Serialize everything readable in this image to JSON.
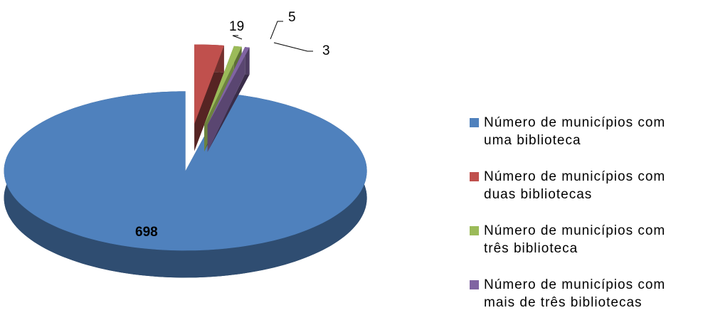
{
  "chart_data": {
    "type": "pie",
    "categories": [
      "Número de municípios com uma biblioteca",
      "Número de municípios com duas bibliotecas",
      "Número de municípios com três biblioteca",
      "Número de municípios com mais de três bibliotecas"
    ],
    "values": [
      698,
      19,
      5,
      3
    ],
    "colors": [
      "#4f81bd",
      "#c0504d",
      "#9bbb59",
      "#8064a2"
    ],
    "legend": "right"
  }
}
